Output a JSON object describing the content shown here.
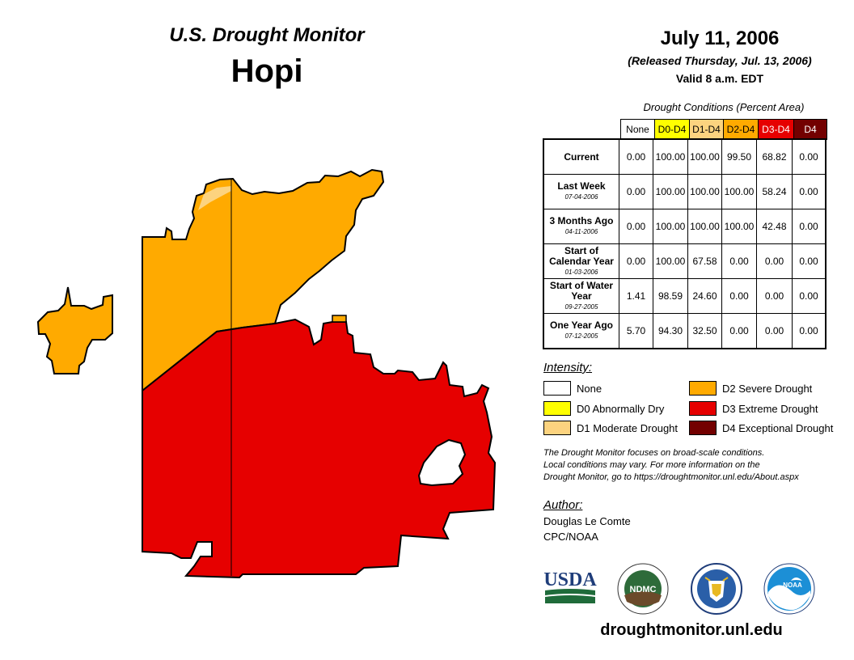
{
  "header": {
    "map_title": "U.S. Drought Monitor",
    "region_name": "Hopi",
    "date": "July 11, 2006",
    "released": "(Released Thursday, Jul. 13, 2006)",
    "valid": "Valid 8 a.m. EDT"
  },
  "table": {
    "caption": "Drought Conditions (Percent Area)",
    "columns": [
      "None",
      "D0-D4",
      "D1-D4",
      "D2-D4",
      "D3-D4",
      "D4"
    ],
    "column_colors": [
      "#ffffff",
      "#ffff00",
      "#fcd37f",
      "#ffaa00",
      "#e60000",
      "#730000"
    ],
    "column_text_colors": [
      "#000000",
      "#000000",
      "#000000",
      "#000000",
      "#ffffff",
      "#ffffff"
    ],
    "rows": [
      {
        "label": "Current",
        "date": "",
        "values": [
          "0.00",
          "100.00",
          "100.00",
          "99.50",
          "68.82",
          "0.00"
        ]
      },
      {
        "label": "Last Week",
        "date": "07-04-2006",
        "values": [
          "0.00",
          "100.00",
          "100.00",
          "100.00",
          "58.24",
          "0.00"
        ]
      },
      {
        "label": "3 Months Ago",
        "date": "04-11-2006",
        "values": [
          "0.00",
          "100.00",
          "100.00",
          "100.00",
          "42.48",
          "0.00"
        ]
      },
      {
        "label": "Start of Calendar Year",
        "date": "01-03-2006",
        "values": [
          "0.00",
          "100.00",
          "67.58",
          "0.00",
          "0.00",
          "0.00"
        ]
      },
      {
        "label": "Start of Water Year",
        "date": "09-27-2005",
        "values": [
          "1.41",
          "98.59",
          "24.60",
          "0.00",
          "0.00",
          "0.00"
        ]
      },
      {
        "label": "One Year Ago",
        "date": "07-12-2005",
        "values": [
          "5.70",
          "94.30",
          "32.50",
          "0.00",
          "0.00",
          "0.00"
        ]
      }
    ]
  },
  "legend": {
    "title": "Intensity:",
    "items": [
      {
        "label": "None",
        "color": "#ffffff"
      },
      {
        "label": "D0 Abnormally Dry",
        "color": "#ffff00"
      },
      {
        "label": "D1 Moderate Drought",
        "color": "#fcd37f"
      },
      {
        "label": "D2 Severe Drought",
        "color": "#ffaa00"
      },
      {
        "label": "D3 Extreme Drought",
        "color": "#e60000"
      },
      {
        "label": "D4 Exceptional Drought",
        "color": "#730000"
      }
    ]
  },
  "description": {
    "line1": "The Drought Monitor focuses on broad-scale conditions.",
    "line2": "Local conditions may vary. For more information on the",
    "line3": "Drought Monitor, go to https://droughtmonitor.unl.edu/About.aspx"
  },
  "author": {
    "title": "Author:",
    "name": "Douglas Le Comte",
    "org": "CPC/NOAA"
  },
  "logos": {
    "usda": "USDA",
    "ndmc": "NDMC",
    "noaa": "NOAA"
  },
  "footer": {
    "website": "droughtmonitor.unl.edu"
  },
  "map_colors": {
    "d1": "#fcd37f",
    "d2": "#ffaa00",
    "d3": "#e60000"
  }
}
